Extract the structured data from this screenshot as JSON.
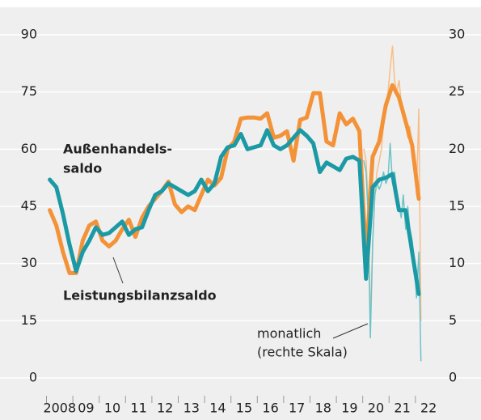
{
  "chart_data": {
    "type": "line",
    "xlim": [
      2008,
      2022.7
    ],
    "xticks": [
      {
        "value": 2008,
        "label": "2008"
      },
      {
        "value": 2009,
        "label": "09"
      },
      {
        "value": 2010,
        "label": "10"
      },
      {
        "value": 2011,
        "label": "11"
      },
      {
        "value": 2012,
        "label": "12"
      },
      {
        "value": 2013,
        "label": "13"
      },
      {
        "value": 2014,
        "label": "14"
      },
      {
        "value": 2015,
        "label": "15"
      },
      {
        "value": 2016,
        "label": "16"
      },
      {
        "value": 2017,
        "label": "17"
      },
      {
        "value": 2018,
        "label": "18"
      },
      {
        "value": 2019,
        "label": "19"
      },
      {
        "value": 2020,
        "label": "20"
      },
      {
        "value": 2021,
        "label": "21"
      },
      {
        "value": 2022,
        "label": "22"
      }
    ],
    "ylim": [
      0,
      90
    ],
    "yticks": [
      0,
      15,
      30,
      45,
      60,
      75,
      90
    ],
    "y2lim": [
      0,
      30
    ],
    "y2ticks": [
      0,
      5,
      10,
      15,
      20,
      25,
      30
    ],
    "grid": true,
    "series": [
      {
        "color": "#f8bd86",
        "axis": "y2",
        "width": 1.5,
        "x": [
          2020.04,
          2020.13,
          2020.21,
          2020.29,
          2020.38,
          2020.46,
          2020.54,
          2020.63,
          2020.71,
          2020.79,
          2020.88,
          2020.96,
          2021.04,
          2021.13,
          2021.21,
          2021.29,
          2021.38,
          2021.46,
          2021.54,
          2021.63,
          2021.71,
          2021.79,
          2021.88,
          2021.96,
          2022.04,
          2022.13,
          2022.21
        ],
        "values": [
          20,
          19,
          15,
          5,
          12,
          16,
          18,
          19,
          20,
          22,
          24,
          25,
          27,
          29,
          26,
          25,
          26,
          24,
          23,
          22,
          21,
          22,
          20,
          19,
          16,
          23.5,
          5
        ]
      },
      {
        "color": "#6cc3c8",
        "axis": "y2",
        "width": 1.5,
        "x": [
          2020.04,
          2020.13,
          2020.21,
          2020.29,
          2020.38,
          2020.46,
          2020.54,
          2020.63,
          2020.71,
          2020.79,
          2020.88,
          2020.96,
          2021.04,
          2021.13,
          2021.21,
          2021.29,
          2021.38,
          2021.46,
          2021.54,
          2021.63,
          2021.71,
          2021.79,
          2021.88,
          2021.96,
          2022.04,
          2022.13,
          2022.21
        ],
        "values": [
          19,
          18,
          14,
          3.5,
          12,
          16,
          17,
          16.5,
          17,
          18,
          17,
          17.5,
          20.5,
          17,
          18,
          16.5,
          15,
          14,
          16,
          13,
          15,
          13,
          12,
          10,
          7,
          11,
          1.5
        ]
      },
      {
        "color": "#f39237",
        "width": 5,
        "x": [
          2008.125,
          2008.375,
          2008.625,
          2008.875,
          2009.125,
          2009.375,
          2009.625,
          2009.875,
          2010.125,
          2010.375,
          2010.625,
          2010.875,
          2011.125,
          2011.375,
          2011.625,
          2011.875,
          2012.125,
          2012.375,
          2012.625,
          2012.875,
          2013.125,
          2013.375,
          2013.625,
          2013.875,
          2014.125,
          2014.375,
          2014.625,
          2014.875,
          2015.125,
          2015.375,
          2015.625,
          2015.875,
          2016.125,
          2016.375,
          2016.625,
          2016.875,
          2017.125,
          2017.375,
          2017.625,
          2017.875,
          2018.125,
          2018.375,
          2018.625,
          2018.875,
          2019.125,
          2019.375,
          2019.625,
          2019.875,
          2020.125,
          2020.375,
          2020.625,
          2020.875,
          2021.125,
          2021.375,
          2021.625,
          2021.875,
          2022.125
        ],
        "values": [
          44,
          40,
          33,
          27.5,
          27.5,
          36,
          40,
          41,
          36,
          34.5,
          36,
          39,
          41.5,
          37,
          42,
          45,
          47,
          49,
          51.5,
          45.5,
          43.5,
          45,
          44,
          48,
          52,
          50.5,
          52.5,
          60,
          62,
          68,
          68.3,
          68.3,
          68,
          69.4,
          63,
          63.5,
          64.7,
          57,
          67.7,
          68.3,
          74.7,
          74.7,
          62,
          61,
          69.4,
          66.5,
          68,
          64.7,
          31,
          58,
          62,
          71.5,
          76.8,
          73.6,
          67.3,
          61,
          47
        ]
      },
      {
        "color": "#1b9aa5",
        "width": 5,
        "x": [
          2008.125,
          2008.375,
          2008.625,
          2008.875,
          2009.125,
          2009.375,
          2009.625,
          2009.875,
          2010.125,
          2010.375,
          2010.625,
          2010.875,
          2011.125,
          2011.375,
          2011.625,
          2011.875,
          2012.125,
          2012.375,
          2012.625,
          2012.875,
          2013.125,
          2013.375,
          2013.625,
          2013.875,
          2014.125,
          2014.375,
          2014.625,
          2014.875,
          2015.125,
          2015.375,
          2015.625,
          2015.875,
          2016.125,
          2016.375,
          2016.625,
          2016.875,
          2017.125,
          2017.375,
          2017.625,
          2017.875,
          2018.125,
          2018.375,
          2018.625,
          2018.875,
          2019.125,
          2019.375,
          2019.625,
          2019.875,
          2020.125,
          2020.375,
          2020.625,
          2020.875,
          2021.125,
          2021.375,
          2021.625,
          2021.875,
          2022.125
        ],
        "values": [
          52,
          50,
          43,
          35,
          28,
          33,
          36,
          39.5,
          37.5,
          38,
          39.5,
          41,
          37.5,
          39,
          39.5,
          44,
          48,
          49,
          51,
          50,
          49,
          48,
          49,
          52,
          49,
          51,
          58,
          60.5,
          61,
          64,
          60,
          60.5,
          61,
          65,
          61,
          60,
          61,
          63,
          65,
          63.5,
          61.5,
          54,
          56.5,
          55.5,
          54.5,
          57.5,
          58,
          57,
          26,
          50,
          52,
          52.5,
          53.5,
          44,
          44,
          33,
          22
        ]
      }
    ],
    "annotations": [
      {
        "lines": [
          "Außenhandels-",
          "saldo"
        ]
      },
      {
        "lines": [
          "Leistungsbilanzsaldo"
        ]
      },
      {
        "lines": [
          "monatlich",
          "(rechte Skala)"
        ]
      }
    ]
  }
}
